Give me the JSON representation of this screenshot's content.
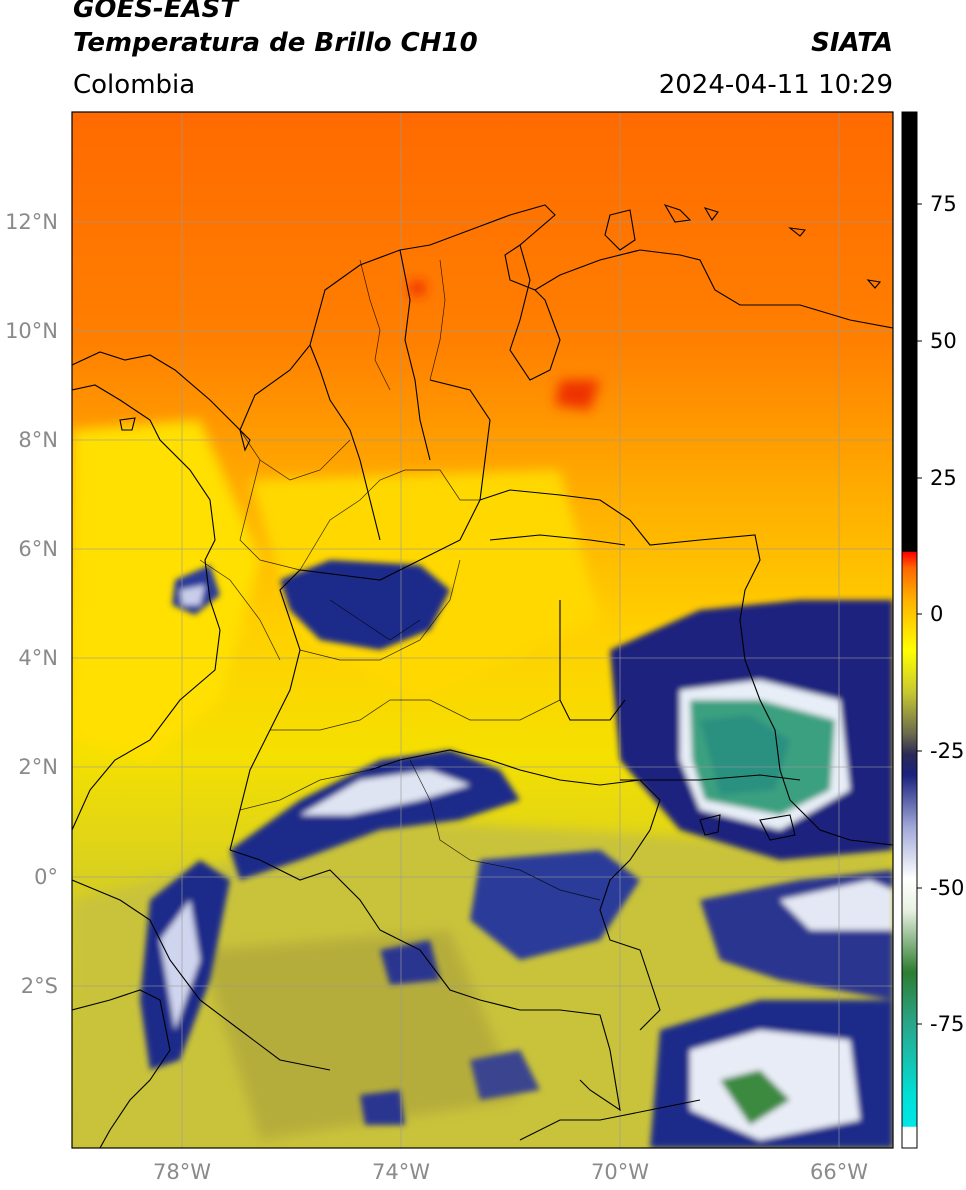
{
  "header": {
    "satellite": "GOES-EAST",
    "product": "Temperatura de Brillo CH10",
    "org": "SIATA",
    "region": "Colombia",
    "datetime": "2024-04-11 10:29"
  },
  "axes": {
    "lat_labels": [
      "12°N",
      "10°N",
      "8°N",
      "6°N",
      "4°N",
      "2°N",
      "0°",
      "2°S"
    ],
    "lon_labels": [
      "78°W",
      "74°W",
      "70°W",
      "66°W"
    ]
  },
  "colorbar": {
    "ticks": [
      "75",
      "50",
      "25",
      "0",
      "-25",
      "-50",
      "-75"
    ],
    "colors": [
      "#ffffff",
      "#00e5e5",
      "#2aa68a",
      "#2e7d32",
      "#e9f2e2",
      "#ffffff",
      "#a0a8d8",
      "#1a237e",
      "#6b6b4d",
      "#c8c832",
      "#ffff00",
      "#ff9900",
      "#ff0000",
      "#000000"
    ]
  }
}
